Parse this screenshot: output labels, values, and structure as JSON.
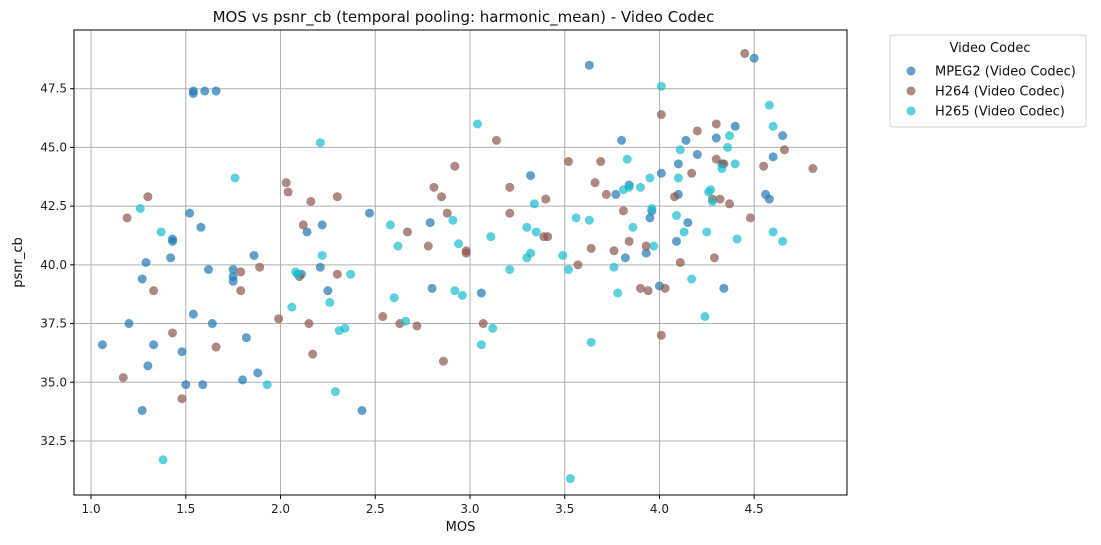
{
  "chart_data": {
    "type": "scatter",
    "title": "MOS vs psnr_cb (temporal pooling: harmonic_mean) - Video Codec",
    "xlabel": "MOS",
    "ylabel": "psnr_cb",
    "xlim": [
      0.91,
      4.99
    ],
    "ylim": [
      30.2,
      50.0
    ],
    "xticks": [
      "1.0",
      "1.5",
      "2.0",
      "2.5",
      "3.0",
      "3.5",
      "4.0",
      "4.5"
    ],
    "yticks": [
      "32.5",
      "35.0",
      "37.5",
      "40.0",
      "42.5",
      "45.0",
      "47.5"
    ],
    "grid": true,
    "legend": {
      "title": "Video Codec",
      "placement": "outside-top-right"
    },
    "series": [
      {
        "name": "MPEG2 (Video Codec)",
        "color": "#1f77b4",
        "points": [
          [
            1.06,
            36.6
          ],
          [
            1.2,
            37.5
          ],
          [
            1.27,
            39.4
          ],
          [
            1.27,
            33.8
          ],
          [
            1.29,
            40.1
          ],
          [
            1.3,
            35.7
          ],
          [
            1.33,
            36.6
          ],
          [
            1.42,
            40.3
          ],
          [
            1.43,
            41.1
          ],
          [
            1.43,
            41.0
          ],
          [
            1.48,
            36.3
          ],
          [
            1.5,
            34.9
          ],
          [
            1.52,
            42.2
          ],
          [
            1.54,
            47.3
          ],
          [
            1.54,
            47.4
          ],
          [
            1.54,
            37.9
          ],
          [
            1.58,
            41.6
          ],
          [
            1.59,
            34.9
          ],
          [
            1.6,
            47.4
          ],
          [
            1.62,
            39.8
          ],
          [
            1.64,
            37.5
          ],
          [
            1.66,
            47.4
          ],
          [
            1.75,
            39.8
          ],
          [
            1.75,
            39.5
          ],
          [
            1.75,
            39.3
          ],
          [
            1.8,
            35.1
          ],
          [
            1.82,
            36.9
          ],
          [
            1.86,
            40.4
          ],
          [
            1.88,
            35.4
          ],
          [
            2.11,
            39.6
          ],
          [
            2.14,
            41.4
          ],
          [
            2.21,
            39.9
          ],
          [
            2.22,
            41.7
          ],
          [
            2.25,
            38.9
          ],
          [
            2.43,
            33.8
          ],
          [
            2.47,
            42.2
          ],
          [
            2.79,
            41.8
          ],
          [
            2.8,
            39.0
          ],
          [
            3.06,
            38.8
          ],
          [
            3.32,
            43.8
          ],
          [
            3.63,
            48.5
          ],
          [
            3.77,
            43.0
          ],
          [
            3.8,
            45.3
          ],
          [
            3.82,
            40.3
          ],
          [
            3.84,
            43.4
          ],
          [
            3.93,
            40.5
          ],
          [
            3.95,
            42.0
          ],
          [
            3.96,
            42.3
          ],
          [
            4.0,
            39.1
          ],
          [
            4.01,
            43.9
          ],
          [
            4.09,
            41.0
          ],
          [
            4.1,
            44.3
          ],
          [
            4.1,
            43.0
          ],
          [
            4.14,
            45.3
          ],
          [
            4.15,
            41.8
          ],
          [
            4.2,
            44.7
          ],
          [
            4.3,
            45.4
          ],
          [
            4.33,
            44.3
          ],
          [
            4.34,
            39.0
          ],
          [
            4.4,
            45.9
          ],
          [
            4.5,
            48.8
          ],
          [
            4.56,
            43.0
          ],
          [
            4.58,
            42.8
          ],
          [
            4.6,
            44.6
          ],
          [
            4.65,
            45.5
          ]
        ]
      },
      {
        "name": "H264 (Video Codec)",
        "color": "#8c564b",
        "points": [
          [
            1.17,
            35.2
          ],
          [
            1.19,
            42.0
          ],
          [
            1.3,
            42.9
          ],
          [
            1.33,
            38.9
          ],
          [
            1.43,
            37.1
          ],
          [
            1.48,
            34.3
          ],
          [
            1.66,
            36.5
          ],
          [
            1.79,
            39.7
          ],
          [
            1.79,
            38.9
          ],
          [
            1.89,
            39.9
          ],
          [
            1.99,
            37.7
          ],
          [
            2.03,
            43.5
          ],
          [
            2.04,
            43.1
          ],
          [
            2.1,
            39.5
          ],
          [
            2.12,
            41.7
          ],
          [
            2.15,
            37.5
          ],
          [
            2.16,
            42.7
          ],
          [
            2.17,
            36.2
          ],
          [
            2.3,
            42.9
          ],
          [
            2.3,
            39.6
          ],
          [
            2.54,
            37.8
          ],
          [
            2.63,
            37.5
          ],
          [
            2.67,
            41.4
          ],
          [
            2.72,
            37.4
          ],
          [
            2.78,
            40.8
          ],
          [
            2.81,
            43.3
          ],
          [
            2.85,
            42.9
          ],
          [
            2.86,
            35.9
          ],
          [
            2.88,
            42.2
          ],
          [
            2.92,
            44.2
          ],
          [
            2.98,
            40.6
          ],
          [
            2.98,
            40.5
          ],
          [
            3.07,
            37.5
          ],
          [
            3.14,
            45.3
          ],
          [
            3.21,
            43.3
          ],
          [
            3.21,
            42.2
          ],
          [
            3.39,
            41.2
          ],
          [
            3.4,
            42.8
          ],
          [
            3.41,
            41.2
          ],
          [
            3.52,
            44.4
          ],
          [
            3.57,
            40.0
          ],
          [
            3.64,
            40.7
          ],
          [
            3.66,
            43.5
          ],
          [
            3.69,
            44.4
          ],
          [
            3.72,
            43.0
          ],
          [
            3.76,
            40.6
          ],
          [
            3.81,
            42.3
          ],
          [
            3.84,
            41.0
          ],
          [
            3.9,
            39.0
          ],
          [
            3.93,
            40.8
          ],
          [
            3.94,
            38.9
          ],
          [
            4.01,
            46.4
          ],
          [
            4.01,
            37.0
          ],
          [
            4.03,
            39.0
          ],
          [
            4.08,
            42.9
          ],
          [
            4.11,
            40.1
          ],
          [
            4.17,
            43.9
          ],
          [
            4.2,
            45.7
          ],
          [
            4.28,
            42.8
          ],
          [
            4.29,
            40.3
          ],
          [
            4.3,
            46.0
          ],
          [
            4.3,
            44.5
          ],
          [
            4.32,
            42.8
          ],
          [
            4.34,
            44.3
          ],
          [
            4.37,
            42.6
          ],
          [
            4.45,
            49.0
          ],
          [
            4.48,
            42.0
          ],
          [
            4.55,
            44.2
          ],
          [
            4.66,
            44.9
          ],
          [
            4.81,
            44.1
          ]
        ]
      },
      {
        "name": "H265 (Video Codec)",
        "color": "#17becf",
        "points": [
          [
            1.26,
            42.4
          ],
          [
            1.37,
            41.4
          ],
          [
            1.38,
            31.7
          ],
          [
            1.76,
            43.7
          ],
          [
            1.93,
            34.9
          ],
          [
            2.06,
            38.2
          ],
          [
            2.08,
            39.7
          ],
          [
            2.09,
            39.6
          ],
          [
            2.21,
            45.2
          ],
          [
            2.22,
            40.4
          ],
          [
            2.26,
            38.4
          ],
          [
            2.29,
            34.6
          ],
          [
            2.31,
            37.2
          ],
          [
            2.34,
            37.3
          ],
          [
            2.37,
            39.6
          ],
          [
            2.58,
            41.7
          ],
          [
            2.6,
            38.6
          ],
          [
            2.62,
            40.8
          ],
          [
            2.66,
            37.6
          ],
          [
            2.91,
            41.9
          ],
          [
            2.92,
            38.9
          ],
          [
            2.94,
            40.9
          ],
          [
            2.96,
            38.7
          ],
          [
            3.04,
            46.0
          ],
          [
            3.06,
            36.6
          ],
          [
            3.11,
            41.2
          ],
          [
            3.12,
            37.3
          ],
          [
            3.21,
            39.8
          ],
          [
            3.3,
            41.6
          ],
          [
            3.3,
            40.3
          ],
          [
            3.32,
            40.5
          ],
          [
            3.34,
            42.6
          ],
          [
            3.35,
            41.4
          ],
          [
            3.49,
            40.4
          ],
          [
            3.52,
            39.8
          ],
          [
            3.53,
            30.9
          ],
          [
            3.56,
            42.0
          ],
          [
            3.63,
            41.9
          ],
          [
            3.64,
            36.7
          ],
          [
            3.76,
            39.9
          ],
          [
            3.78,
            38.8
          ],
          [
            3.81,
            43.2
          ],
          [
            3.83,
            44.5
          ],
          [
            3.84,
            43.3
          ],
          [
            3.86,
            41.6
          ],
          [
            3.9,
            43.3
          ],
          [
            3.95,
            43.7
          ],
          [
            3.96,
            42.4
          ],
          [
            3.97,
            40.8
          ],
          [
            4.01,
            47.6
          ],
          [
            4.09,
            42.1
          ],
          [
            4.1,
            43.7
          ],
          [
            4.11,
            44.9
          ],
          [
            4.13,
            41.4
          ],
          [
            4.17,
            39.4
          ],
          [
            4.24,
            37.8
          ],
          [
            4.25,
            41.4
          ],
          [
            4.26,
            43.1
          ],
          [
            4.27,
            43.2
          ],
          [
            4.28,
            42.7
          ],
          [
            4.33,
            44.1
          ],
          [
            4.36,
            45.0
          ],
          [
            4.37,
            45.5
          ],
          [
            4.4,
            44.3
          ],
          [
            4.41,
            41.1
          ],
          [
            4.58,
            46.8
          ],
          [
            4.6,
            45.9
          ],
          [
            4.6,
            41.4
          ],
          [
            4.65,
            41.0
          ]
        ]
      }
    ]
  }
}
